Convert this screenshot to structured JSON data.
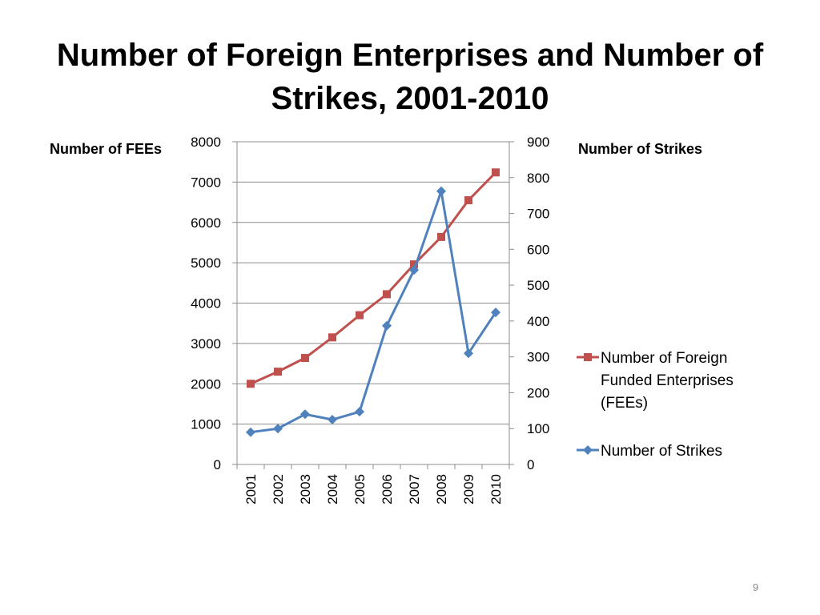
{
  "slide": {
    "title_line1": "Number of Foreign Enterprises and Number of",
    "title_line2": "Strikes, 2001-2010",
    "page_number": "9"
  },
  "chart_data": {
    "type": "line",
    "title": "Number of Foreign Enterprises and Number of Strikes, 2001-2010",
    "categories": [
      "2001",
      "2002",
      "2003",
      "2004",
      "2005",
      "2006",
      "2007",
      "2008",
      "2009",
      "2010"
    ],
    "y_left": {
      "label": "Number of FEEs",
      "range": [
        0,
        8000
      ],
      "ticks": [
        0,
        1000,
        2000,
        3000,
        4000,
        5000,
        6000,
        7000,
        8000
      ]
    },
    "y_right": {
      "label": "Number of Strikes",
      "range": [
        0,
        900
      ],
      "ticks": [
        0,
        100,
        200,
        300,
        400,
        500,
        600,
        700,
        800,
        900
      ]
    },
    "grid": "horizontal",
    "legend_position": "right",
    "series": [
      {
        "name": "Number of Foreign Funded Enterprises (FEEs)",
        "legend_lines": [
          "Number of Foreign",
          "Funded Enterprises",
          "(FEEs)"
        ],
        "axis": "left",
        "color": "#c0504d",
        "marker": "square",
        "values": [
          2000,
          2300,
          2640,
          3150,
          3700,
          4220,
          4960,
          5640,
          6550,
          7240
        ]
      },
      {
        "name": "Number of Strikes",
        "legend_lines": [
          "Number of Strikes"
        ],
        "axis": "right",
        "color": "#4f81bd",
        "marker": "diamond",
        "values": [
          90,
          100,
          140,
          125,
          147,
          387,
          542,
          762,
          310,
          424
        ]
      }
    ]
  }
}
